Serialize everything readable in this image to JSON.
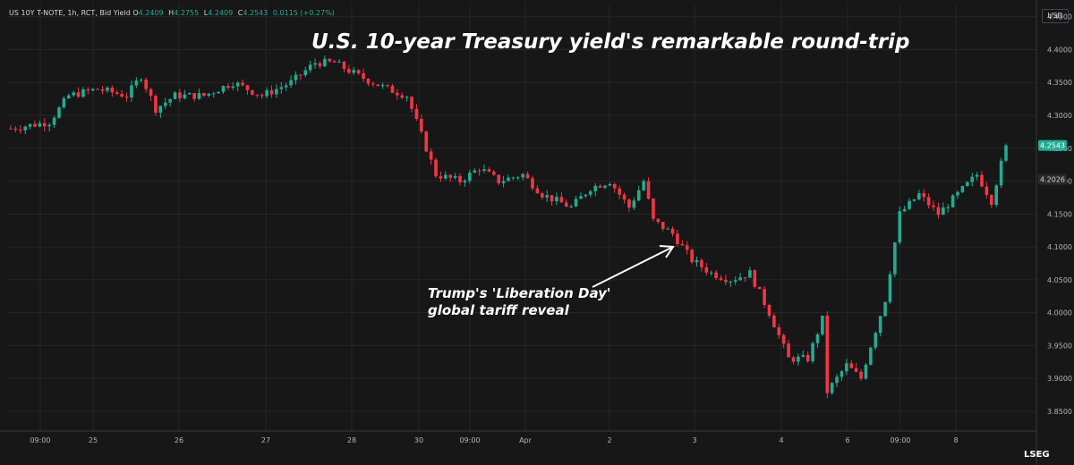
{
  "header": {
    "symbol": "US 10Y T-NOTE, 1h, RCT, Bid Yield",
    "o_label": "O",
    "o_value": "4.2409",
    "h_label": "H",
    "h_value": "4.2755",
    "l_label": "L",
    "l_value": "4.2409",
    "c_label": "C",
    "c_value": "4.2543",
    "change": "0.0115 (+0.27%)"
  },
  "unit_button": "USD",
  "logo": "LSEG",
  "annotation": [
    "Trump's 'Liberation Day'",
    "global tariff reveal"
  ],
  "colors": {
    "up": "#22ab94",
    "down": "#f23645",
    "background": "#171717",
    "grid": "#262626",
    "text": "#b2b5be"
  },
  "chart_data": {
    "type": "candlestick",
    "title": "U.S. 10-year Treasury yield's remarkable round-trip",
    "xlabel": "",
    "ylabel": "",
    "ylim": [
      3.82,
      4.47
    ],
    "y_ticks": [
      "4.4500",
      "4.4000",
      "4.3500",
      "4.3000",
      "4.2500",
      "4.2000",
      "4.1500",
      "4.1000",
      "4.0500",
      "4.0000",
      "3.9500",
      "3.9000",
      "3.8500"
    ],
    "x_ticks": [
      "09:00",
      "25",
      "26",
      "27",
      "28",
      "30",
      "09:00",
      "Apr",
      "2",
      "3",
      "4",
      "6",
      "09:00",
      "8"
    ],
    "price_labels": [
      {
        "text": "4.2543",
        "value": 4.2543,
        "style": "last"
      },
      {
        "text": "4.2026",
        "value": 4.2026,
        "style": "marker"
      }
    ],
    "anchors": [
      [
        0,
        4.28
      ],
      [
        8,
        4.29
      ],
      [
        12,
        4.33
      ],
      [
        18,
        4.34
      ],
      [
        24,
        4.33
      ],
      [
        27,
        4.36
      ],
      [
        30,
        4.31
      ],
      [
        34,
        4.33
      ],
      [
        40,
        4.33
      ],
      [
        46,
        4.35
      ],
      [
        52,
        4.33
      ],
      [
        58,
        4.35
      ],
      [
        63,
        4.38
      ],
      [
        67,
        4.38
      ],
      [
        72,
        4.36
      ],
      [
        78,
        4.34
      ],
      [
        82,
        4.33
      ],
      [
        86,
        4.25
      ],
      [
        88,
        4.21
      ],
      [
        93,
        4.2
      ],
      [
        97,
        4.22
      ],
      [
        101,
        4.2
      ],
      [
        106,
        4.21
      ],
      [
        110,
        4.18
      ],
      [
        116,
        4.16
      ],
      [
        120,
        4.19
      ],
      [
        124,
        4.2
      ],
      [
        128,
        4.16
      ],
      [
        131,
        4.2
      ],
      [
        133,
        4.14
      ],
      [
        137,
        4.12
      ],
      [
        141,
        4.08
      ],
      [
        145,
        4.06
      ],
      [
        149,
        4.05
      ],
      [
        153,
        4.06
      ],
      [
        157,
        4.0
      ],
      [
        161,
        3.93
      ],
      [
        165,
        3.93
      ],
      [
        168,
        3.99
      ],
      [
        169,
        3.88
      ],
      [
        173,
        3.92
      ],
      [
        176,
        3.9
      ],
      [
        178,
        3.95
      ],
      [
        181,
        4.02
      ],
      [
        184,
        4.15
      ],
      [
        188,
        4.18
      ],
      [
        192,
        4.15
      ],
      [
        196,
        4.18
      ],
      [
        200,
        4.21
      ],
      [
        203,
        4.17
      ],
      [
        206,
        4.2543
      ]
    ],
    "candle_count": 207
  }
}
